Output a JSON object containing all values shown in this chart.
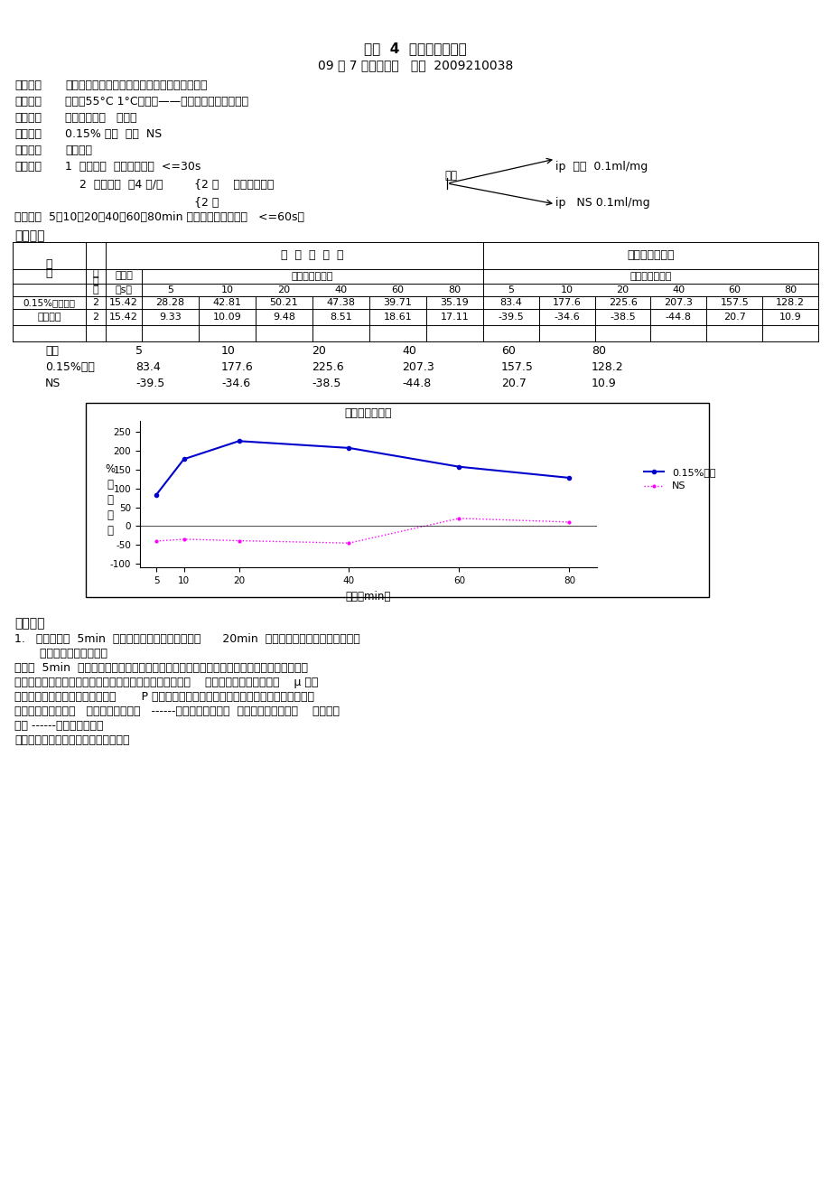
{
  "title_main": "实验  4  吗啡的镇痛作用",
  "subtitle": "09 级 7 年儿科一班   李洋  2009210038",
  "sec_labels": [
    "实验目的",
    "实验原理",
    "实验器材",
    "实验药品",
    "实验动物"
  ],
  "sec_texts": [
    "观察吗啡的镇痛作用，掌握热板镇痛实验的方法",
    "热板（55°C 1°C）致痛——小鼠舔足反射（后足）",
    "热板纸漏仪器   注射器",
    "0.15% 盐酸  吗啡  NS",
    "雌性小鼠"
  ],
  "method_label": "实验方法",
  "method_1": "1  筛选动物  ：正常痛阈值  <=30s",
  "method_2": "2  正式实验  ：4 只/组",
  "method_2a": "{2 只    测正常痛阈值",
  "method_2b": "{2 只",
  "weigh_label": "称重",
  "ip_morphine": "ip  吗啡  0.1ml/mg",
  "ip_ns": "ip   NS 0.1ml/mg",
  "observe_line": "观测药后  5、10、20、40、60、80min 痛阈值（药后痛阈值   <=60s）",
  "result_label": "实验结果",
  "table_after_morphine": [
    28.28,
    42.81,
    50.21,
    47.38,
    39.71,
    35.19
  ],
  "table_after_ns": [
    9.33,
    10.09,
    9.48,
    8.51,
    18.61,
    17.11
  ],
  "table_pct_morphine": [
    83.4,
    177.6,
    225.6,
    207.3,
    157.5,
    128.2
  ],
  "table_pct_ns": [
    -39.5,
    -34.6,
    -38.5,
    -44.8,
    20.7,
    10.9
  ],
  "time_points": [
    5,
    10,
    20,
    40,
    60,
    80
  ],
  "group_morphine": [
    83.4,
    177.6,
    225.6,
    207.3,
    157.5,
    128.2
  ],
  "group_ns": [
    -39.5,
    -34.6,
    -38.5,
    -44.8,
    20.7,
    10.9
  ],
  "chart_title": "吗啡的镇痛作用",
  "chart_xlabel": "时间（min）",
  "line_morphine_color": "#0000CC",
  "line_ns_color": "#FF00FF",
  "legend_morphine": "0.15%吗啡",
  "legend_ns": "NS",
  "discussion_title": "小组讨论",
  "disc1": "1.   实验组：在  5min  时痛阈提高，之后逐渐上升在      20min  时达到高峰，之后逐渐下降，没",
  "disc1b": "       有恢复到给药前水平。",
  "disc2": "解释：  5min  时吗啡作用出现，说明开始吸收且吸收良好，吗啡作为阿片受体激动药，作用",
  "disc3": "于脊髓胶质区、丘脑内侧、脑室及导水管周围灰质等部位，    与突触前膜和后膜的阿片    μ 受体",
  "disc4": "结合，减少感觉传入神经末梢释放       P 物质，抑制痛觉传入产生镇痛作用。随着在体内吸收，",
  "disc5": "达到最高有效浓度，   发挥最大镇痛作用   ------阈值达到最高值。  之后药物代谢消除，    镇痛作用",
  "disc6": "减弱 ------阈值逐渐下降；",
  "disc7": "因为观察时间不足，未恢复给药前水平"
}
